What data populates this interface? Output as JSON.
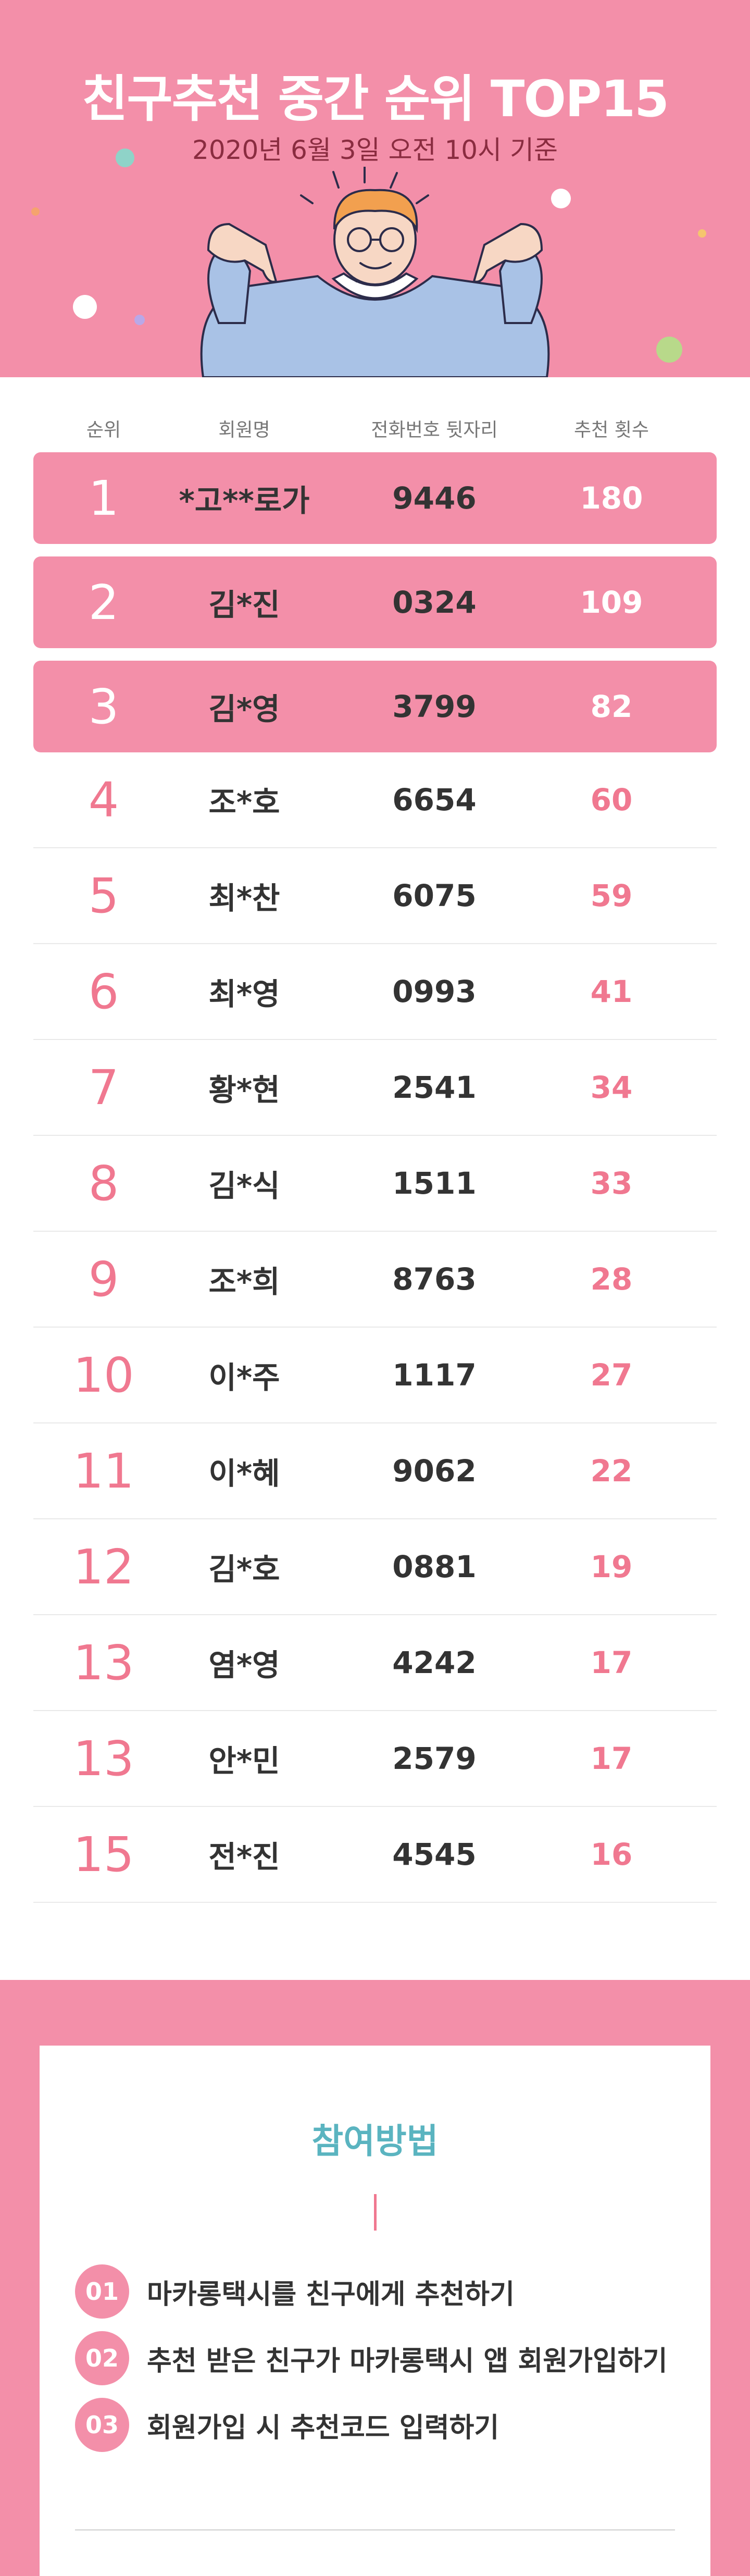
{
  "header": {
    "title": "친구추천 중간 순위 TOP15",
    "subtitle": "2020년 6월 3일 오전 10시 기준"
  },
  "table": {
    "columns": [
      "순위",
      "회원명",
      "전화번호 뒷자리",
      "추천 횟수"
    ],
    "rows": [
      {
        "rank": "1",
        "name": "*고**로가",
        "phone": "9446",
        "count": "180"
      },
      {
        "rank": "2",
        "name": "김*진",
        "phone": "0324",
        "count": "109"
      },
      {
        "rank": "3",
        "name": "김*영",
        "phone": "3799",
        "count": "82"
      },
      {
        "rank": "4",
        "name": "조*호",
        "phone": "6654",
        "count": "60"
      },
      {
        "rank": "5",
        "name": "최*찬",
        "phone": "6075",
        "count": "59"
      },
      {
        "rank": "6",
        "name": "최*영",
        "phone": "0993",
        "count": "41"
      },
      {
        "rank": "7",
        "name": "황*현",
        "phone": "2541",
        "count": "34"
      },
      {
        "rank": "8",
        "name": "김*식",
        "phone": "1511",
        "count": "33"
      },
      {
        "rank": "9",
        "name": "조*희",
        "phone": "8763",
        "count": "28"
      },
      {
        "rank": "10",
        "name": "이*주",
        "phone": "1117",
        "count": "27"
      },
      {
        "rank": "11",
        "name": "이*혜",
        "phone": "9062",
        "count": "22"
      },
      {
        "rank": "12",
        "name": "김*호",
        "phone": "0881",
        "count": "19"
      },
      {
        "rank": "13",
        "name": "염*영",
        "phone": "4242",
        "count": "17"
      },
      {
        "rank": "13",
        "name": "안*민",
        "phone": "2579",
        "count": "17"
      },
      {
        "rank": "15",
        "name": "전*진",
        "phone": "4545",
        "count": "16"
      }
    ]
  },
  "howto": {
    "title": "참여방법",
    "steps": [
      {
        "num": "01",
        "text": "마카롱택시를 친구에게 추천하기"
      },
      {
        "num": "02",
        "text": "추천 받은 친구가 마카롱택시 앱 회원가입하기"
      },
      {
        "num": "03",
        "text": "회원가입 시 추천코드 입력하기"
      }
    ]
  },
  "colors": {
    "pink": "#f38fa9",
    "rank_pink": "#f07890",
    "teal": "#5ab4c0",
    "subtitle": "#8a2c40"
  },
  "icons": [
    "man-pointing-illustration"
  ]
}
